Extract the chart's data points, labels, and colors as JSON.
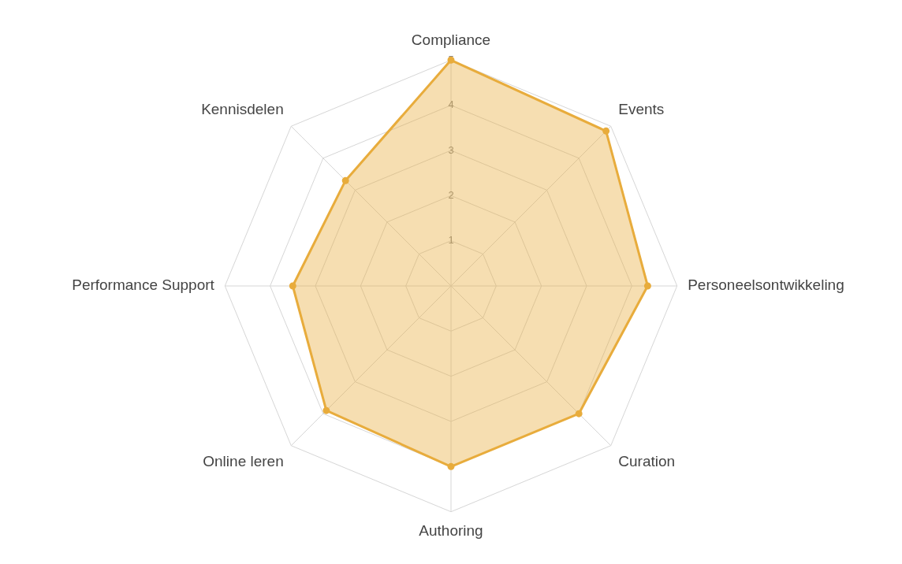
{
  "chart_data": {
    "type": "radar",
    "categories": [
      "Compliance",
      "Events",
      "Personeelsontwikkeling",
      "Curation",
      "Authoring",
      "Online leren",
      "Performance Support",
      "Kennisdelen"
    ],
    "series": [
      {
        "color": "#e8ac3c",
        "values": [
          5,
          4.85,
          4.35,
          4,
          4,
          3.9,
          3.5,
          3.3
        ]
      }
    ],
    "ylim": [
      0,
      5
    ],
    "yticks": [
      1,
      2,
      3,
      4,
      5
    ],
    "grid": true,
    "marker": "circle"
  }
}
